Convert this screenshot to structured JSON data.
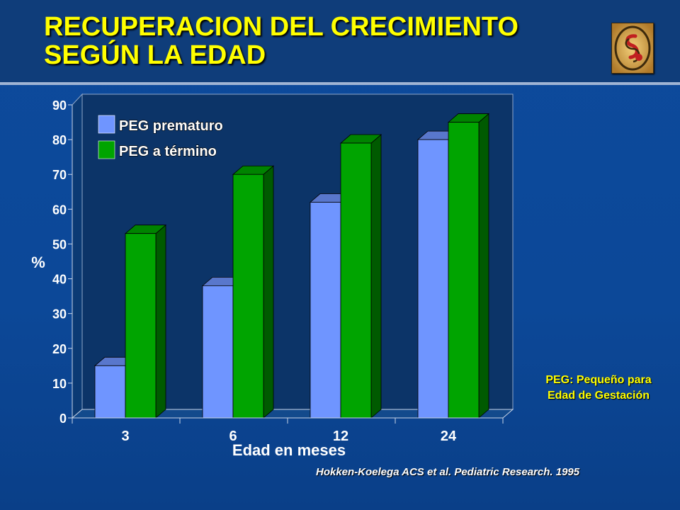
{
  "slide": {
    "title_line1": "RECUPERACION DEL CRECIMIENTO",
    "title_line2": "SEGÚN LA EDAD",
    "note_line1": "PEG: Pequeño para",
    "note_line2": "Edad de Gestación",
    "citation": "Hokken-Koelega ACS et al. Pediatric Research. 1995",
    "logo_icon": "spiral-logo-icon"
  },
  "colors": {
    "title": "#ffff00",
    "prematuro": "#6f95ff",
    "termino": "#00a400",
    "plot_background": "#0c3468"
  },
  "chart_data": {
    "type": "bar",
    "title": "",
    "xlabel": "Edad en meses",
    "ylabel": "%",
    "categories": [
      "3",
      "6",
      "12",
      "24"
    ],
    "ylim": [
      0,
      90
    ],
    "yticks": [
      0,
      10,
      20,
      30,
      40,
      50,
      60,
      70,
      80,
      90
    ],
    "legend_position": "top-left",
    "series": [
      {
        "name": "PEG prematuro",
        "values": [
          15,
          38,
          62,
          80
        ]
      },
      {
        "name": "PEG a término",
        "values": [
          53,
          70,
          79,
          85
        ]
      }
    ]
  }
}
